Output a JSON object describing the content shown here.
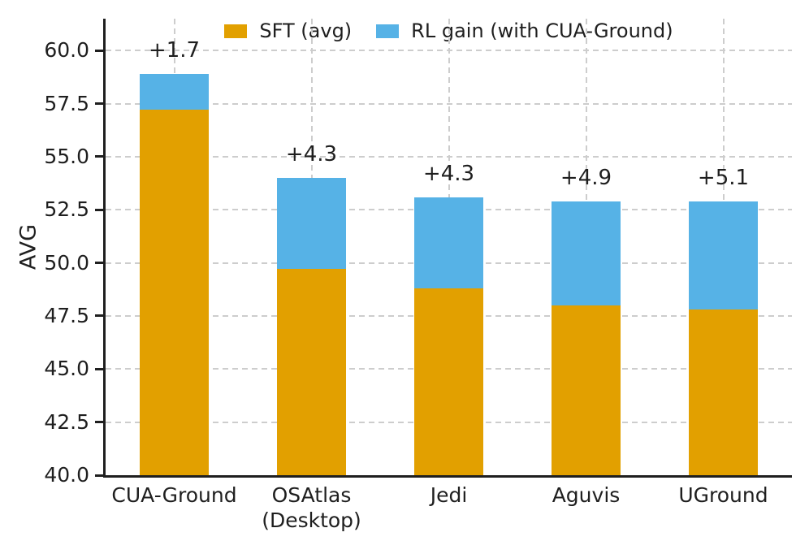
{
  "chart_data": {
    "type": "bar",
    "stacked": true,
    "title": "",
    "xlabel": "",
    "ylabel": "AVG",
    "ylim": [
      40.0,
      61.5
    ],
    "yticks": [
      40.0,
      42.5,
      45.0,
      47.5,
      50.0,
      52.5,
      55.0,
      57.5,
      60.0
    ],
    "ytick_labels": [
      "40.0",
      "42.5",
      "45.0",
      "47.5",
      "50.0",
      "52.5",
      "55.0",
      "57.5",
      "60.0"
    ],
    "categories": [
      "CUA-Ground",
      "OSAtlas\n(Desktop)",
      "Jedi",
      "Aguvis",
      "UGround"
    ],
    "series": [
      {
        "name": "SFT (avg)",
        "color": "#E2A000",
        "values": [
          57.2,
          49.7,
          48.8,
          48.0,
          47.8
        ]
      },
      {
        "name": "RL gain (with CUA-Ground)",
        "color": "#56B2E6",
        "values": [
          1.7,
          4.3,
          4.3,
          4.9,
          5.1
        ]
      }
    ],
    "totals": [
      58.9,
      54.0,
      53.1,
      52.9,
      52.9
    ],
    "annotations": [
      "+1.7",
      "+4.3",
      "+4.3",
      "+4.9",
      "+5.1"
    ],
    "legend_position": "upper center",
    "grid": "dashed horizontal and vertical",
    "text_color": "#1f1f1f",
    "grid_color": "#cdcdcd"
  }
}
